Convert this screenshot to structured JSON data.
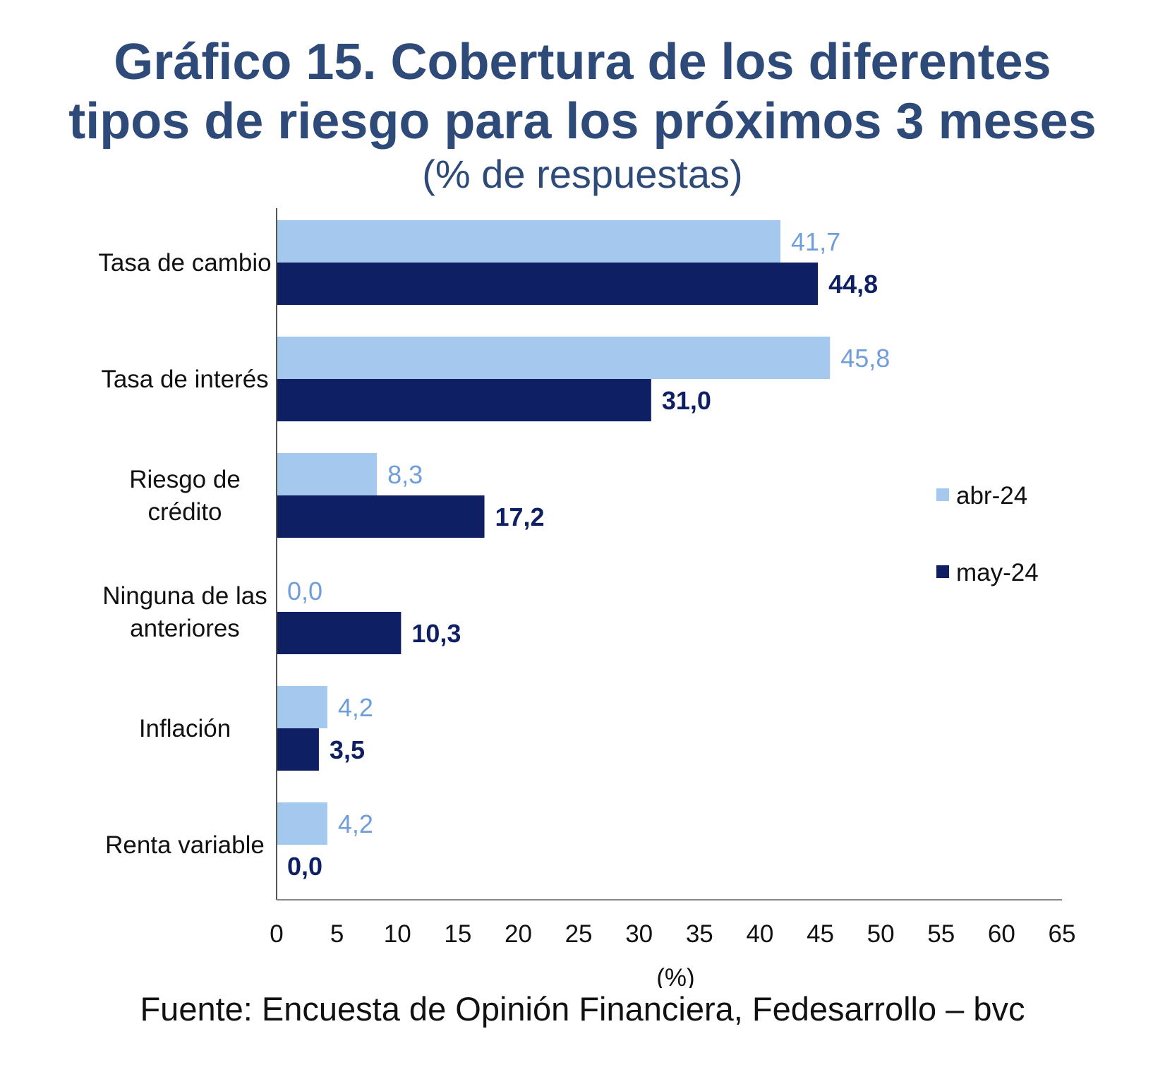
{
  "title_line1": "Gráfico 15. Cobertura de los diferentes",
  "title_line2": "tipos de riesgo para los próximos 3 meses",
  "subtitle": "(% de respuestas)",
  "source": "Fuente: Encuesta de Opinión Financiera, Fedesarrollo – bvc",
  "chart_data": {
    "type": "bar",
    "orientation": "horizontal",
    "categories": [
      [
        "Tasa de cambio"
      ],
      [
        "Tasa de interés"
      ],
      [
        "Riesgo de",
        "crédito"
      ],
      [
        "Ninguna de las",
        "anteriores"
      ],
      [
        "Inflación"
      ],
      [
        "Renta variable"
      ]
    ],
    "series": [
      {
        "name": "abr-24",
        "color": "#a4c8ee",
        "label_color": "#6f9edb",
        "label_bold": false,
        "values": [
          41.7,
          45.8,
          8.3,
          0.0,
          4.2,
          4.2
        ],
        "labels": [
          "41,7",
          "45,8",
          "8,3",
          "0,0",
          "4,2",
          "4,2"
        ]
      },
      {
        "name": "may-24",
        "color": "#0f1f63",
        "label_color": "#0f1f63",
        "label_bold": true,
        "values": [
          44.8,
          31.0,
          17.2,
          10.3,
          3.5,
          0.0
        ],
        "labels": [
          "44,8",
          "31,0",
          "17,2",
          "10,3",
          "3,5",
          "0,0"
        ]
      }
    ],
    "xlim": [
      0,
      65
    ],
    "xticks": [
      0,
      5,
      10,
      15,
      20,
      25,
      30,
      35,
      40,
      45,
      50,
      55,
      60,
      65
    ],
    "xlabel": "(%)",
    "grid": false,
    "legend_position": "right"
  }
}
